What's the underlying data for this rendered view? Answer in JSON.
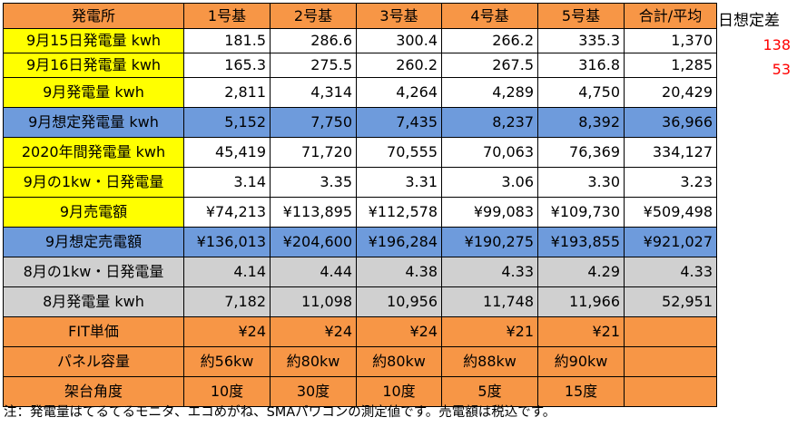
{
  "header": [
    "発電所",
    "1号基",
    "2号基",
    "3号基",
    "4号基",
    "5号基",
    "合計/平均"
  ],
  "rows": [
    {
      "label": "9月15日発電量 kwh",
      "values": [
        "181.5",
        "286.6",
        "300.4",
        "266.2",
        "335.3",
        "1,370"
      ]
    },
    {
      "label": "9月16日発電量 kwh",
      "values": [
        "165.3",
        "275.5",
        "260.2",
        "267.5",
        "316.8",
        "1,285"
      ]
    },
    {
      "label": "9月発電量 kwh",
      "values": [
        "2,811",
        "4,314",
        "4,264",
        "4,289",
        "4,750",
        "20,429"
      ]
    },
    {
      "label": "9月想定発電量 kwh",
      "values": [
        "5,152",
        "7,750",
        "7,435",
        "8,237",
        "8,392",
        "36,966"
      ]
    },
    {
      "label": "2020年間発電量 kwh",
      "values": [
        "45,419",
        "71,720",
        "70,555",
        "70,063",
        "76,369",
        "334,127"
      ]
    },
    {
      "label": "9月の1kw・日発電量",
      "values": [
        "3.14",
        "3.35",
        "3.31",
        "3.06",
        "3.30",
        "3.23"
      ]
    },
    {
      "label": "9月売電額",
      "values": [
        "¥74,213",
        "¥113,895",
        "¥112,578",
        "¥99,083",
        "¥109,730",
        "¥509,498"
      ]
    },
    {
      "label": "9月想定売電額",
      "values": [
        "¥136,013",
        "¥204,600",
        "¥196,284",
        "¥190,275",
        "¥193,855",
        "¥921,027"
      ]
    },
    {
      "label": "8月の1kw・日発電量",
      "values": [
        "4.14",
        "4.44",
        "4.38",
        "4.33",
        "4.29",
        "4.33"
      ]
    },
    {
      "label": "8月発電量 kwh",
      "values": [
        "7,182",
        "11,098",
        "10,956",
        "11,748",
        "11,966",
        "52,951"
      ]
    },
    {
      "label": "FIT単価",
      "values": [
        "¥24",
        "¥24",
        "¥24",
        "¥21",
        "¥21",
        ""
      ]
    },
    {
      "label": "パネル容量",
      "values": [
        "約56kw",
        "約80kw",
        "約80kw",
        "約88kw",
        "約90kw",
        ""
      ]
    },
    {
      "label": "架台角度",
      "values": [
        "10度",
        "30度",
        "10度",
        "5度",
        "15度",
        ""
      ]
    }
  ],
  "side": {
    "title": "日想定差",
    "values": [
      "138",
      "53"
    ]
  },
  "note": "注：発電量はてるてるモニタ、エコめがね、SMAパワコンの測定値です。売電額は税込です。",
  "colors": {
    "orange": "#f79646",
    "yellow": "#ffff00",
    "blue": "#6e9bdc",
    "gray": "#d0d0d0",
    "red": "#ff0000"
  }
}
